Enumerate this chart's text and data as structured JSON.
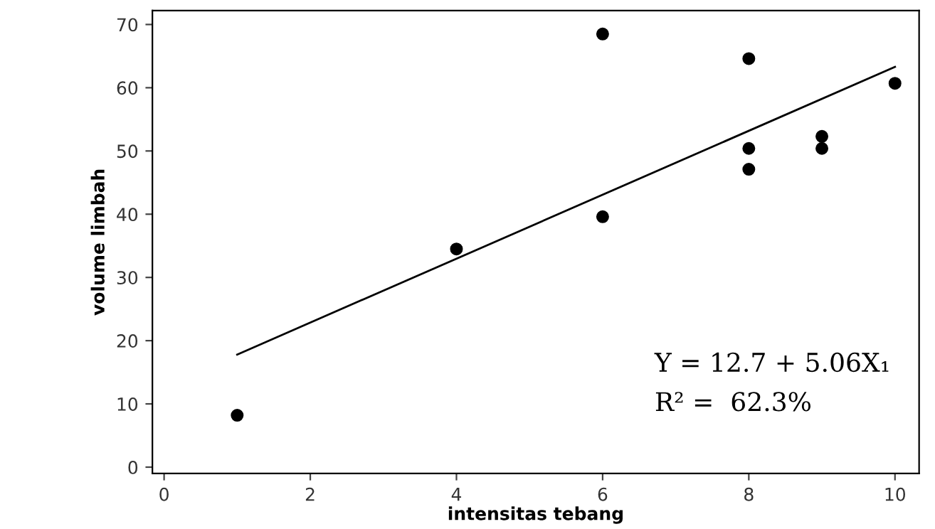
{
  "chart_data": {
    "type": "scatter",
    "xlabel": "intensitas tebang",
    "ylabel": "volume limbah",
    "xlim": [
      -0.16,
      10.33
    ],
    "ylim": [
      -1,
      72.2
    ],
    "xticks": [
      0,
      2,
      4,
      6,
      8,
      10
    ],
    "yticks": [
      0,
      10,
      20,
      30,
      40,
      50,
      60,
      70
    ],
    "grid": false,
    "legend": false,
    "series": [
      {
        "color": "#000000",
        "marker": "circle",
        "x": [
          1,
          4,
          6,
          6,
          8,
          8,
          8,
          9,
          9,
          10
        ],
        "values": [
          8.2,
          34.5,
          68.5,
          39.6,
          64.6,
          50.4,
          47.1,
          52.3,
          50.4,
          60.7
        ]
      },
      {
        "type": "line",
        "color": "#000000",
        "x": [
          1,
          10
        ],
        "values": [
          17.8,
          63.3
        ]
      }
    ],
    "annotations": [
      "Y = 12.7 + 5.06X₁",
      "R² =  62.3%"
    ]
  }
}
